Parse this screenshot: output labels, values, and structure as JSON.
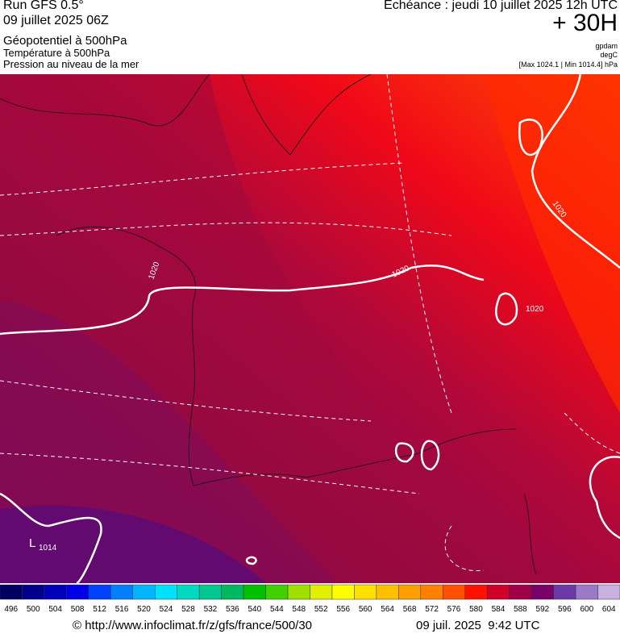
{
  "header": {
    "run": "Run GFS 0.5°",
    "date": "09 juillet 2025 06Z",
    "field1": "Géopotentiel à 500hPa",
    "field2": "Température à 500hPa",
    "field3": "Pression au niveau de la mer",
    "forecast": "Echéance : jeudi 10 juillet 2025 12h UTC",
    "lead": "+ 30H",
    "unit1": "gpdam",
    "unit2": "degC",
    "range": "[Max 1024.1 | Min 1014.4] hPa"
  },
  "map": {
    "labels": [
      "1020",
      "1020",
      "1020",
      "1020",
      "1014",
      "L"
    ]
  },
  "scale": {
    "values": [
      496,
      500,
      504,
      508,
      512,
      516,
      520,
      524,
      528,
      532,
      536,
      540,
      544,
      548,
      552,
      556,
      560,
      564,
      568,
      572,
      576,
      580,
      584,
      588,
      592,
      596,
      600,
      604
    ],
    "colors": [
      "#000060",
      "#00008c",
      "#0000b8",
      "#0000e6",
      "#0040ff",
      "#0080ff",
      "#00b4ff",
      "#00e0ff",
      "#00d8c0",
      "#00c890",
      "#00b860",
      "#00c000",
      "#40d000",
      "#a0e000",
      "#e0f000",
      "#ffff00",
      "#ffe000",
      "#ffc000",
      "#ffa000",
      "#ff8000",
      "#ff5000",
      "#ff1000",
      "#d0002a",
      "#a00048",
      "#780068",
      "#6a3aa8",
      "#9a7ac8",
      "#c8b0e0"
    ]
  },
  "footer": {
    "source": "© http://www.infoclimat.fr/z/gfs/france/500/30",
    "timestamp": "09 juil. 2025  9:42 UTC"
  }
}
